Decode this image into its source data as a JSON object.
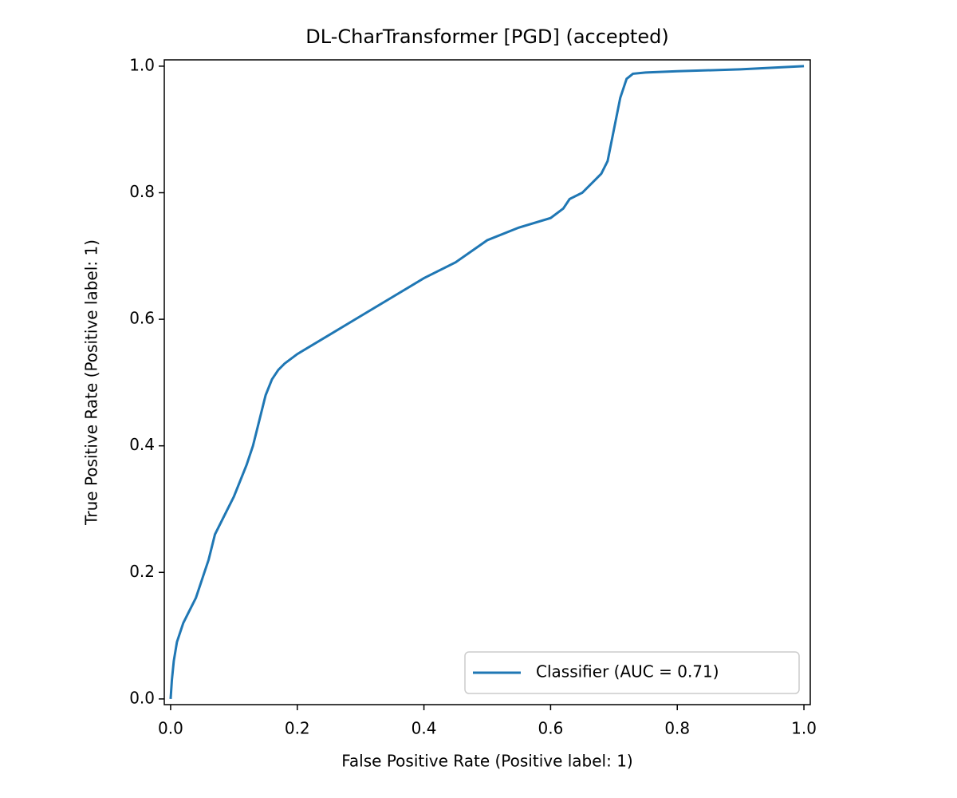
{
  "chart_data": {
    "type": "line",
    "title": "DL-CharTransformer [PGD] (accepted)",
    "x_label": "False Positive Rate (Positive label: 1)",
    "y_label": "True Positive Rate (Positive label: 1)",
    "x": [
      0,
      0.002,
      0.005,
      0.01,
      0.02,
      0.03,
      0.04,
      0.05,
      0.06,
      0.07,
      0.08,
      0.09,
      0.1,
      0.11,
      0.12,
      0.13,
      0.14,
      0.15,
      0.16,
      0.17,
      0.18,
      0.2,
      0.25,
      0.3,
      0.35,
      0.4,
      0.45,
      0.5,
      0.55,
      0.6,
      0.62,
      0.63,
      0.65,
      0.67,
      0.68,
      0.69,
      0.7,
      0.71,
      0.72,
      0.73,
      0.75,
      0.8,
      0.9,
      1
    ],
    "series": [
      {
        "name": "Classifier (AUC = 0.71)",
        "color": "#1f77b4",
        "values": [
          0,
          0.03,
          0.06,
          0.09,
          0.12,
          0.14,
          0.16,
          0.19,
          0.22,
          0.26,
          0.28,
          0.3,
          0.32,
          0.345,
          0.37,
          0.4,
          0.44,
          0.48,
          0.505,
          0.52,
          0.53,
          0.545,
          0.575,
          0.605,
          0.635,
          0.665,
          0.69,
          0.725,
          0.745,
          0.76,
          0.775,
          0.79,
          0.8,
          0.82,
          0.83,
          0.85,
          0.9,
          0.95,
          0.98,
          0.988,
          0.99,
          0.992,
          0.995,
          1
        ]
      }
    ],
    "xlim": [
      -0.01,
      1.01
    ],
    "ylim": [
      -0.009,
      1.01
    ],
    "xticks": [
      {
        "value": 0,
        "label": "0.0"
      },
      0.2,
      0.4,
      0.6,
      0.8,
      {
        "value": 1,
        "label": "1.0"
      }
    ],
    "yticks": [
      {
        "value": 0,
        "label": "0.0"
      },
      0.2,
      0.4,
      0.6,
      0.8,
      {
        "value": 1,
        "label": "1.0"
      }
    ],
    "legend": "lower right",
    "grid": false
  }
}
